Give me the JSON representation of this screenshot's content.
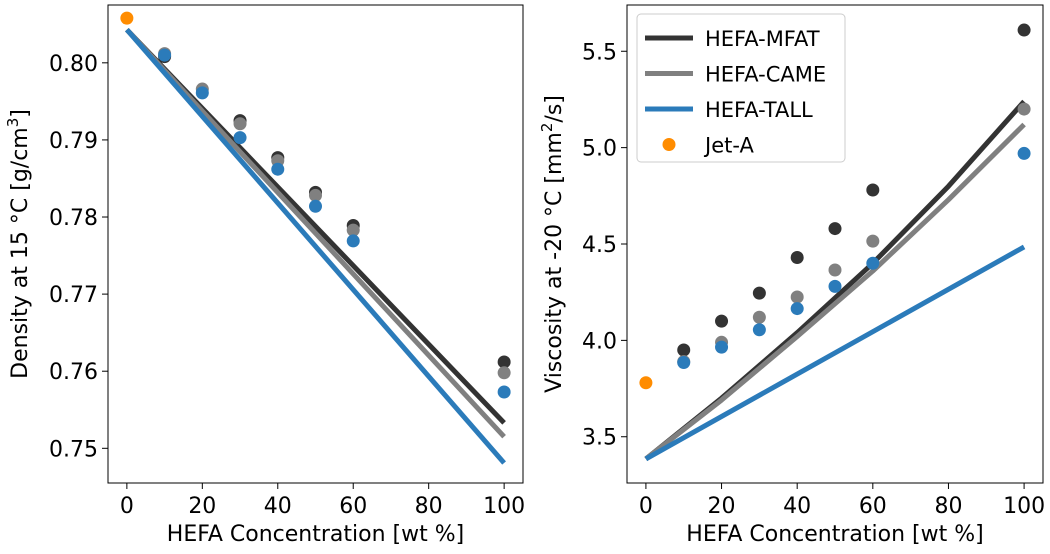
{
  "chart_data": [
    {
      "type": "scatter+line",
      "xlabel": "HEFA Concentration [wt %]",
      "ylabel_main": "Density at 15 °C [g/cm",
      "ylabel_sup": "3",
      "ylabel_end": "]",
      "xlim": [
        -5,
        105
      ],
      "ylim": [
        0.7455,
        0.8075
      ],
      "xticks": [
        0,
        20,
        40,
        60,
        80,
        100
      ],
      "xtick_labels": [
        "0",
        "20",
        "40",
        "60",
        "80",
        "100"
      ],
      "yticks": [
        0.75,
        0.76,
        0.77,
        0.78,
        0.79,
        0.8
      ],
      "ytick_labels": [
        "0.75",
        "0.76",
        "0.77",
        "0.78",
        "0.79",
        "0.80"
      ],
      "lines": [
        {
          "name": "HEFA-MFAT",
          "color": "#333333",
          "x": [
            0,
            100
          ],
          "y": [
            0.8043,
            0.7533
          ]
        },
        {
          "name": "HEFA-CAME",
          "color": "#808080",
          "x": [
            0,
            100
          ],
          "y": [
            0.8043,
            0.7515
          ]
        },
        {
          "name": "HEFA-TALL",
          "color": "#2b7bba",
          "x": [
            0,
            100
          ],
          "y": [
            0.8043,
            0.7481
          ]
        }
      ],
      "points": [
        {
          "name": "HEFA-MFAT",
          "color": "#333333",
          "x": [
            10,
            30,
            40,
            50,
            60,
            100
          ],
          "y": [
            0.8008,
            0.7925,
            0.7877,
            0.7832,
            0.7789,
            0.7612
          ]
        },
        {
          "name": "HEFA-CAME",
          "color": "#808080",
          "x": [
            10,
            20,
            30,
            40,
            50,
            60,
            100
          ],
          "y": [
            0.8012,
            0.7966,
            0.7921,
            0.7873,
            0.7828,
            0.7783,
            0.7598
          ]
        },
        {
          "name": "HEFA-TALL",
          "color": "#2b7bba",
          "x": [
            10,
            20,
            30,
            40,
            50,
            60,
            100
          ],
          "y": [
            0.801,
            0.7961,
            0.7903,
            0.7862,
            0.7814,
            0.7769,
            0.7573
          ]
        },
        {
          "name": "Jet-A",
          "color": "#ff8c00",
          "x": [
            0
          ],
          "y": [
            0.8058
          ]
        }
      ]
    },
    {
      "type": "scatter+line",
      "xlabel": "HEFA Concentration [wt %]",
      "ylabel_main": "Viscosity at -20 °C [mm",
      "ylabel_sup": "2",
      "ylabel_end": "/s]",
      "xlim": [
        -5,
        105
      ],
      "ylim": [
        3.26,
        5.74
      ],
      "xticks": [
        0,
        20,
        40,
        60,
        80,
        100
      ],
      "xtick_labels": [
        "0",
        "20",
        "40",
        "60",
        "80",
        "100"
      ],
      "yticks": [
        3.5,
        4.0,
        4.5,
        5.0,
        5.5
      ],
      "ytick_labels": [
        "3.5",
        "4.0",
        "4.5",
        "5.0",
        "5.5"
      ],
      "legend": {
        "placement": "upper-left",
        "entries": [
          {
            "label": "HEFA-MFAT",
            "kind": "line",
            "color": "#333333"
          },
          {
            "label": "HEFA-CAME",
            "kind": "line",
            "color": "#808080"
          },
          {
            "label": "HEFA-TALL",
            "kind": "line",
            "color": "#2b7bba"
          },
          {
            "label": "Jet-A",
            "kind": "marker",
            "color": "#ff8c00"
          }
        ]
      },
      "lines": [
        {
          "name": "HEFA-MFAT",
          "color": "#333333",
          "x": [
            0,
            20,
            40,
            60,
            80,
            100
          ],
          "y": [
            3.385,
            3.7,
            4.04,
            4.4,
            4.8,
            5.24
          ]
        },
        {
          "name": "HEFA-CAME",
          "color": "#808080",
          "x": [
            0,
            20,
            40,
            60,
            80,
            100
          ],
          "y": [
            3.385,
            3.69,
            4.02,
            4.36,
            4.73,
            5.12
          ]
        },
        {
          "name": "HEFA-TALL",
          "color": "#2b7bba",
          "x": [
            0,
            100
          ],
          "y": [
            3.385,
            4.485
          ]
        }
      ],
      "points": [
        {
          "name": "HEFA-MFAT",
          "color": "#333333",
          "x": [
            10,
            20,
            30,
            40,
            50,
            60,
            100
          ],
          "y": [
            3.95,
            4.1,
            4.245,
            4.43,
            4.58,
            4.78,
            5.61
          ]
        },
        {
          "name": "HEFA-CAME",
          "color": "#808080",
          "x": [
            10,
            20,
            30,
            40,
            50,
            60,
            100
          ],
          "y": [
            3.89,
            3.99,
            4.12,
            4.225,
            4.365,
            4.515,
            5.2
          ]
        },
        {
          "name": "HEFA-TALL",
          "color": "#2b7bba",
          "x": [
            10,
            20,
            30,
            40,
            50,
            60,
            100
          ],
          "y": [
            3.885,
            3.965,
            4.055,
            4.165,
            4.28,
            4.4,
            4.97
          ]
        },
        {
          "name": "Jet-A",
          "color": "#ff8c00",
          "x": [
            0
          ],
          "y": [
            3.78
          ]
        }
      ]
    }
  ]
}
